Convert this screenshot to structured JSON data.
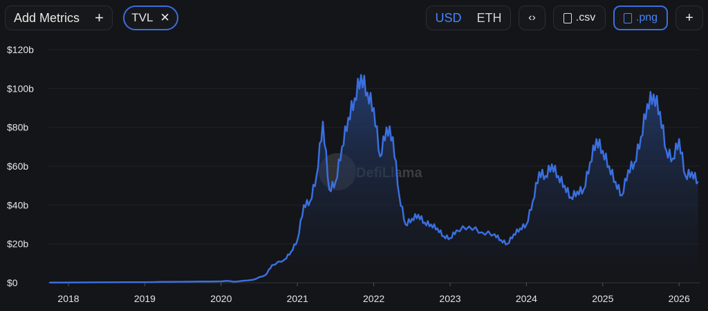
{
  "toolbar": {
    "add_metrics": "Add Metrics",
    "add_icon": "+",
    "metric_chip": "TVL",
    "chip_close": "✕",
    "currency_usd": "USD",
    "currency_eth": "ETH",
    "embed_icon": "‹›",
    "csv": ".csv",
    "png": ".png",
    "more": "+"
  },
  "watermark": "DefiLlama",
  "colors": {
    "line": "#3a6fe0",
    "background": "#141519"
  },
  "chart_data": {
    "type": "area",
    "ylim": [
      0,
      120
    ],
    "yticks": [
      "$0",
      "$20b",
      "$40b",
      "$60b",
      "$80b",
      "$100b",
      "$120b"
    ],
    "xticks": [
      "2018",
      "2019",
      "2020",
      "2021",
      "2022",
      "2023",
      "2024",
      "2025",
      "2026"
    ],
    "grid": true,
    "series": [
      {
        "unit": "USD billions",
        "points": [
          [
            "2017-10",
            0.1
          ],
          [
            "2018-06",
            0.2
          ],
          [
            "2019-01",
            0.3
          ],
          [
            "2019-06",
            0.5
          ],
          [
            "2020-01",
            0.7
          ],
          [
            "2020-02",
            1.0
          ],
          [
            "2020-03",
            0.5
          ],
          [
            "2020-06",
            1.5
          ],
          [
            "2020-08",
            4
          ],
          [
            "2020-09",
            9
          ],
          [
            "2020-11",
            12
          ],
          [
            "2020-12",
            16
          ],
          [
            "2021-01",
            22
          ],
          [
            "2021-02",
            40
          ],
          [
            "2021-03",
            42
          ],
          [
            "2021-04",
            55
          ],
          [
            "2021-05",
            83
          ],
          [
            "2021-06",
            48
          ],
          [
            "2021-07",
            52
          ],
          [
            "2021-08",
            70
          ],
          [
            "2021-09",
            85
          ],
          [
            "2021-10",
            95
          ],
          [
            "2021-11",
            107
          ],
          [
            "2021-12",
            98
          ],
          [
            "2022-01",
            90
          ],
          [
            "2022-02",
            65
          ],
          [
            "2022-03",
            80
          ],
          [
            "2022-04",
            75
          ],
          [
            "2022-05",
            45
          ],
          [
            "2022-06",
            30
          ],
          [
            "2022-07",
            33
          ],
          [
            "2022-08",
            35
          ],
          [
            "2022-09",
            31
          ],
          [
            "2022-10",
            30
          ],
          [
            "2022-11",
            28
          ],
          [
            "2022-12",
            24
          ],
          [
            "2023-01",
            23
          ],
          [
            "2023-02",
            27
          ],
          [
            "2023-04",
            29
          ],
          [
            "2023-06",
            26
          ],
          [
            "2023-08",
            25
          ],
          [
            "2023-09",
            22
          ],
          [
            "2023-10",
            20
          ],
          [
            "2023-11",
            25
          ],
          [
            "2023-12",
            28
          ],
          [
            "2024-01",
            30
          ],
          [
            "2024-02",
            42
          ],
          [
            "2024-03",
            57
          ],
          [
            "2024-04",
            55
          ],
          [
            "2024-05",
            61
          ],
          [
            "2024-06",
            55
          ],
          [
            "2024-07",
            50
          ],
          [
            "2024-08",
            44
          ],
          [
            "2024-09",
            47
          ],
          [
            "2024-10",
            48
          ],
          [
            "2024-11",
            62
          ],
          [
            "2024-12",
            74
          ],
          [
            "2025-01",
            68
          ],
          [
            "2025-02",
            60
          ],
          [
            "2025-03",
            52
          ],
          [
            "2025-04",
            45
          ],
          [
            "2025-05",
            58
          ],
          [
            "2025-06",
            62
          ],
          [
            "2025-07",
            75
          ],
          [
            "2025-08",
            92
          ],
          [
            "2025-09",
            97
          ],
          [
            "2025-10",
            88
          ],
          [
            "2025-11",
            68
          ],
          [
            "2025-12",
            64
          ],
          [
            "2026-01",
            74
          ],
          [
            "2026-02",
            55
          ],
          [
            "2026-03",
            57
          ],
          [
            "2026-04",
            52
          ]
        ]
      }
    ]
  }
}
